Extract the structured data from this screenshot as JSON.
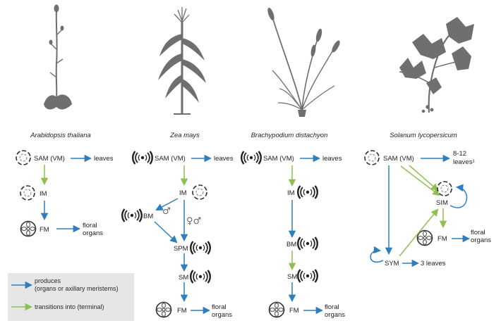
{
  "colors": {
    "produces": "#2f7fbf",
    "transitions": "#8cc152",
    "plant": "#6f6f6f",
    "legend_bg": "#e6e6e6"
  },
  "species": {
    "arabidopsis": "Arabidopsis thaliana",
    "zea": "Zea mays",
    "brachypodium": "Brachypodium distachyon",
    "solanum": "Solanum lycopersicum"
  },
  "arabidopsis": {
    "sam": "SAM (VM)",
    "leaves": "leaves",
    "im": "IM",
    "fm": "FM",
    "floral1": "floral",
    "floral2": "organs"
  },
  "zea": {
    "sam": "SAM (VM)",
    "leaves": "leaves",
    "im": "IM",
    "bm": "BM",
    "male_symbol": "♂",
    "both_symbols": "♀♂",
    "spm": "SPM",
    "sm": "SM",
    "fm": "FM",
    "floral1": "floral",
    "floral2": "organs"
  },
  "brachypodium": {
    "sam": "SAM (VM)",
    "leaves": "leaves",
    "im": "IM",
    "bm": "BM",
    "sm": "SM",
    "fm": "FM",
    "floral1": "floral",
    "floral2": "organs"
  },
  "solanum": {
    "sam": "SAM (VM)",
    "leaves1": "8-12",
    "leaves2": "leaves¹",
    "sim": "SIM",
    "fm": "FM",
    "floral1": "floral",
    "floral2": "organs",
    "sym": "SYM",
    "three_leaves": "3 leaves"
  },
  "legend": {
    "produces_line1": "produces",
    "produces_line2": "(organs or axillary meristems)",
    "transitions": "transitions into (terminal)"
  },
  "icons": [
    "dashed-meristem-icon",
    "radiating-meristem-icon",
    "floral-meristem-icon",
    "arabidopsis-plant-icon",
    "maize-plant-icon",
    "brachypodium-plant-icon",
    "tomato-plant-icon"
  ]
}
